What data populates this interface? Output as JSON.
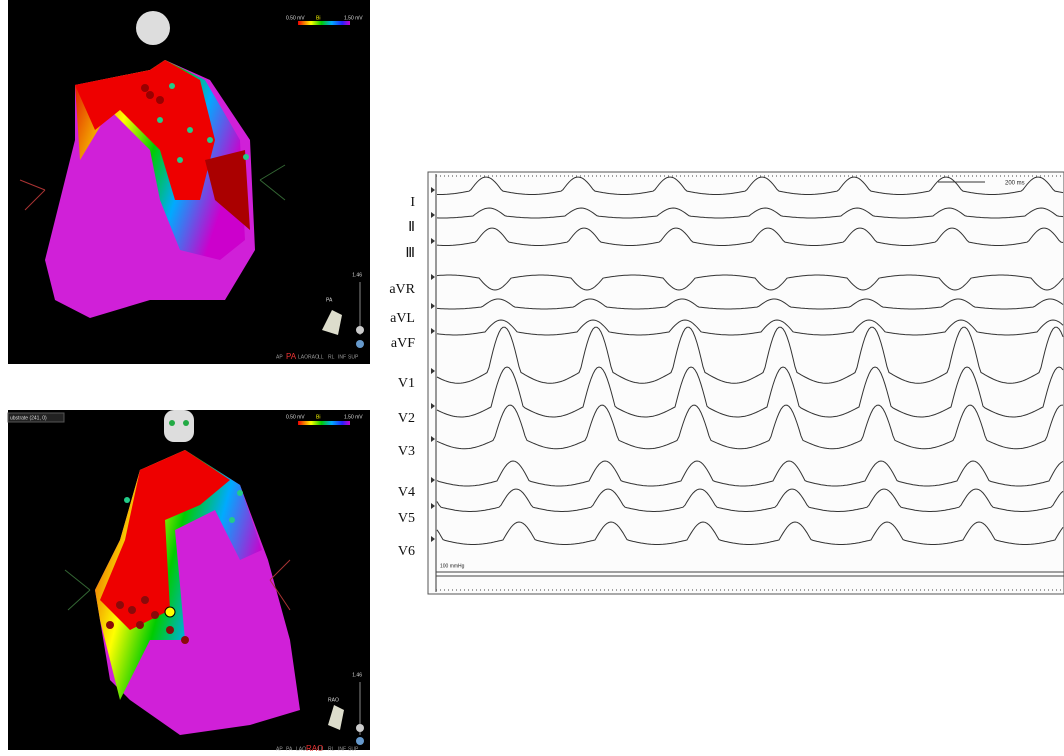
{
  "top_map": {
    "scale_min": "0.50 mV",
    "scale_mode": "Bi",
    "scale_max": "1.50 mV",
    "side_value": "1.46",
    "view": "PA",
    "view_bar": [
      "AP",
      "PA",
      "LAO",
      "RAO",
      "LL",
      "RL",
      "INF",
      "SUP"
    ]
  },
  "bottom_map": {
    "dropdown": "ubstrate (241, 0)",
    "scale_min": "0.50 mV",
    "scale_mode": "Bi",
    "scale_max": "1.50 mV",
    "side_value": "1.46",
    "view": "RAO",
    "view_bar": [
      "AP",
      "PA",
      "LAO",
      "RAO",
      "LL",
      "RL",
      "INF",
      "SUP"
    ]
  },
  "ecg": {
    "leads": [
      "I",
      "Ⅱ",
      "Ⅲ",
      "aVR",
      "aVL",
      "aVF",
      "V1",
      "V2",
      "V3",
      "V4",
      "V5",
      "V6"
    ],
    "scale_label": "200 ms",
    "pressure_label": "100 mmHg"
  }
}
